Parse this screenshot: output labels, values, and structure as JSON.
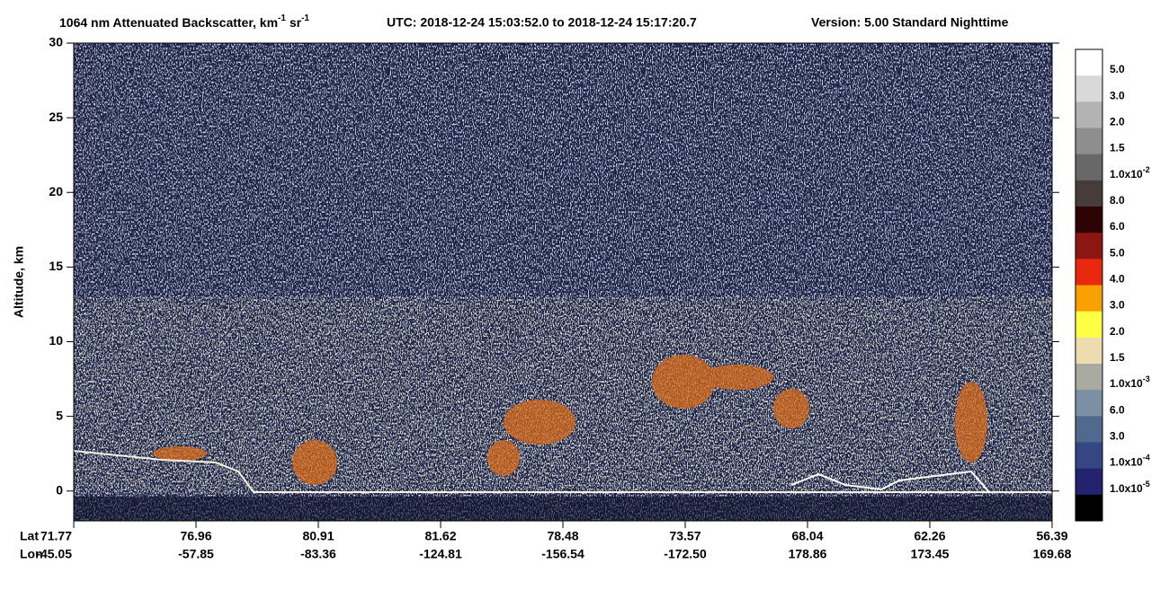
{
  "chart_data": {
    "type": "curtain",
    "title": {
      "text": "1064 nm Attenuated Backscatter, km",
      "sup1": "-1",
      "unit2": " sr",
      "sup2": "-1"
    },
    "time_range": "UTC:  2018-12-24 15:03:52.0  to  2018-12-24 15:17:20.7",
    "version": "Version: 5.00  Standard  Nighttime",
    "y_label": "Altitude, km",
    "ylim": [
      -2,
      30
    ],
    "yticks": [
      0,
      5,
      10,
      15,
      20,
      25,
      30
    ],
    "x_rows": [
      "Lat",
      "Lon"
    ],
    "lat": [
      "71.77",
      "76.96",
      "80.91",
      "81.62",
      "78.48",
      "73.57",
      "68.04",
      "62.26",
      "56.39"
    ],
    "lon": [
      "-45.05",
      "-57.85",
      "-83.36",
      "-124.81",
      "-156.54",
      "-172.50",
      "178.86",
      "173.45",
      "169.68"
    ],
    "colorbar": {
      "colors": [
        "#ffffff",
        "#d9d9d9",
        "#b3b3b3",
        "#8e8e8e",
        "#686868",
        "#473c3a",
        "#2e0303",
        "#8c1710",
        "#e8290f",
        "#f7a000",
        "#ffff44",
        "#ecdcb0",
        "#a9a99f",
        "#7b90a2",
        "#51688f",
        "#344683",
        "#22226e",
        "#000000"
      ],
      "labels": [
        {
          "label": "5.0"
        },
        {
          "label": "3.0"
        },
        {
          "label": "2.0"
        },
        {
          "label": "1.5"
        },
        {
          "label": "1.0x10",
          "exponent": "-2"
        },
        {
          "label": "8.0"
        },
        {
          "label": "6.0"
        },
        {
          "label": "5.0"
        },
        {
          "label": "4.0"
        },
        {
          "label": "3.0"
        },
        {
          "label": "2.0"
        },
        {
          "label": "1.5"
        },
        {
          "label": "1.0x10",
          "exponent": "-3"
        },
        {
          "label": "6.0"
        },
        {
          "label": "3.0"
        },
        {
          "label": "1.0x10",
          "exponent": "-4"
        },
        {
          "label": "1.0x10",
          "exponent": "-5"
        }
      ]
    }
  }
}
